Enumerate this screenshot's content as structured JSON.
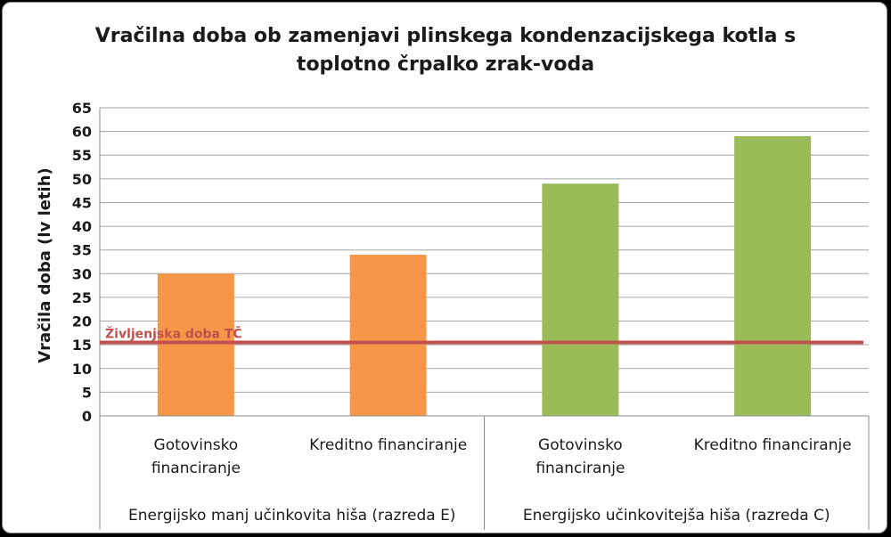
{
  "chart_data": {
    "type": "bar",
    "title_lines": [
      "Vračilna doba ob zamenjavi plinskega kondenzacijskega kotla s",
      "toplotno črpalko zrak-voda"
    ],
    "ylabel": "Vračila doba (lv letih)",
    "ylim": [
      0,
      65
    ],
    "ytick_step": 5,
    "grid": true,
    "groups": [
      {
        "label": "Energijsko manj učinkovita hiša (razreda E)",
        "color": "#f79646",
        "bars": [
          {
            "label_lines": [
              "Gotovinsko",
              "financiranje"
            ],
            "value": 30
          },
          {
            "label_lines": [
              "Kreditno financiranje"
            ],
            "value": 34
          }
        ]
      },
      {
        "label": "Energijsko učinkovitejša hiša (razreda C)",
        "color": "#9bbb59",
        "bars": [
          {
            "label_lines": [
              "Gotovinsko",
              "financiranje"
            ],
            "value": 49
          },
          {
            "label_lines": [
              "Kreditno financiranje"
            ],
            "value": 59
          }
        ]
      }
    ],
    "reference_line": {
      "label": "Življenjska doba TČ",
      "value": 15.5,
      "color": "#c0504d"
    }
  }
}
